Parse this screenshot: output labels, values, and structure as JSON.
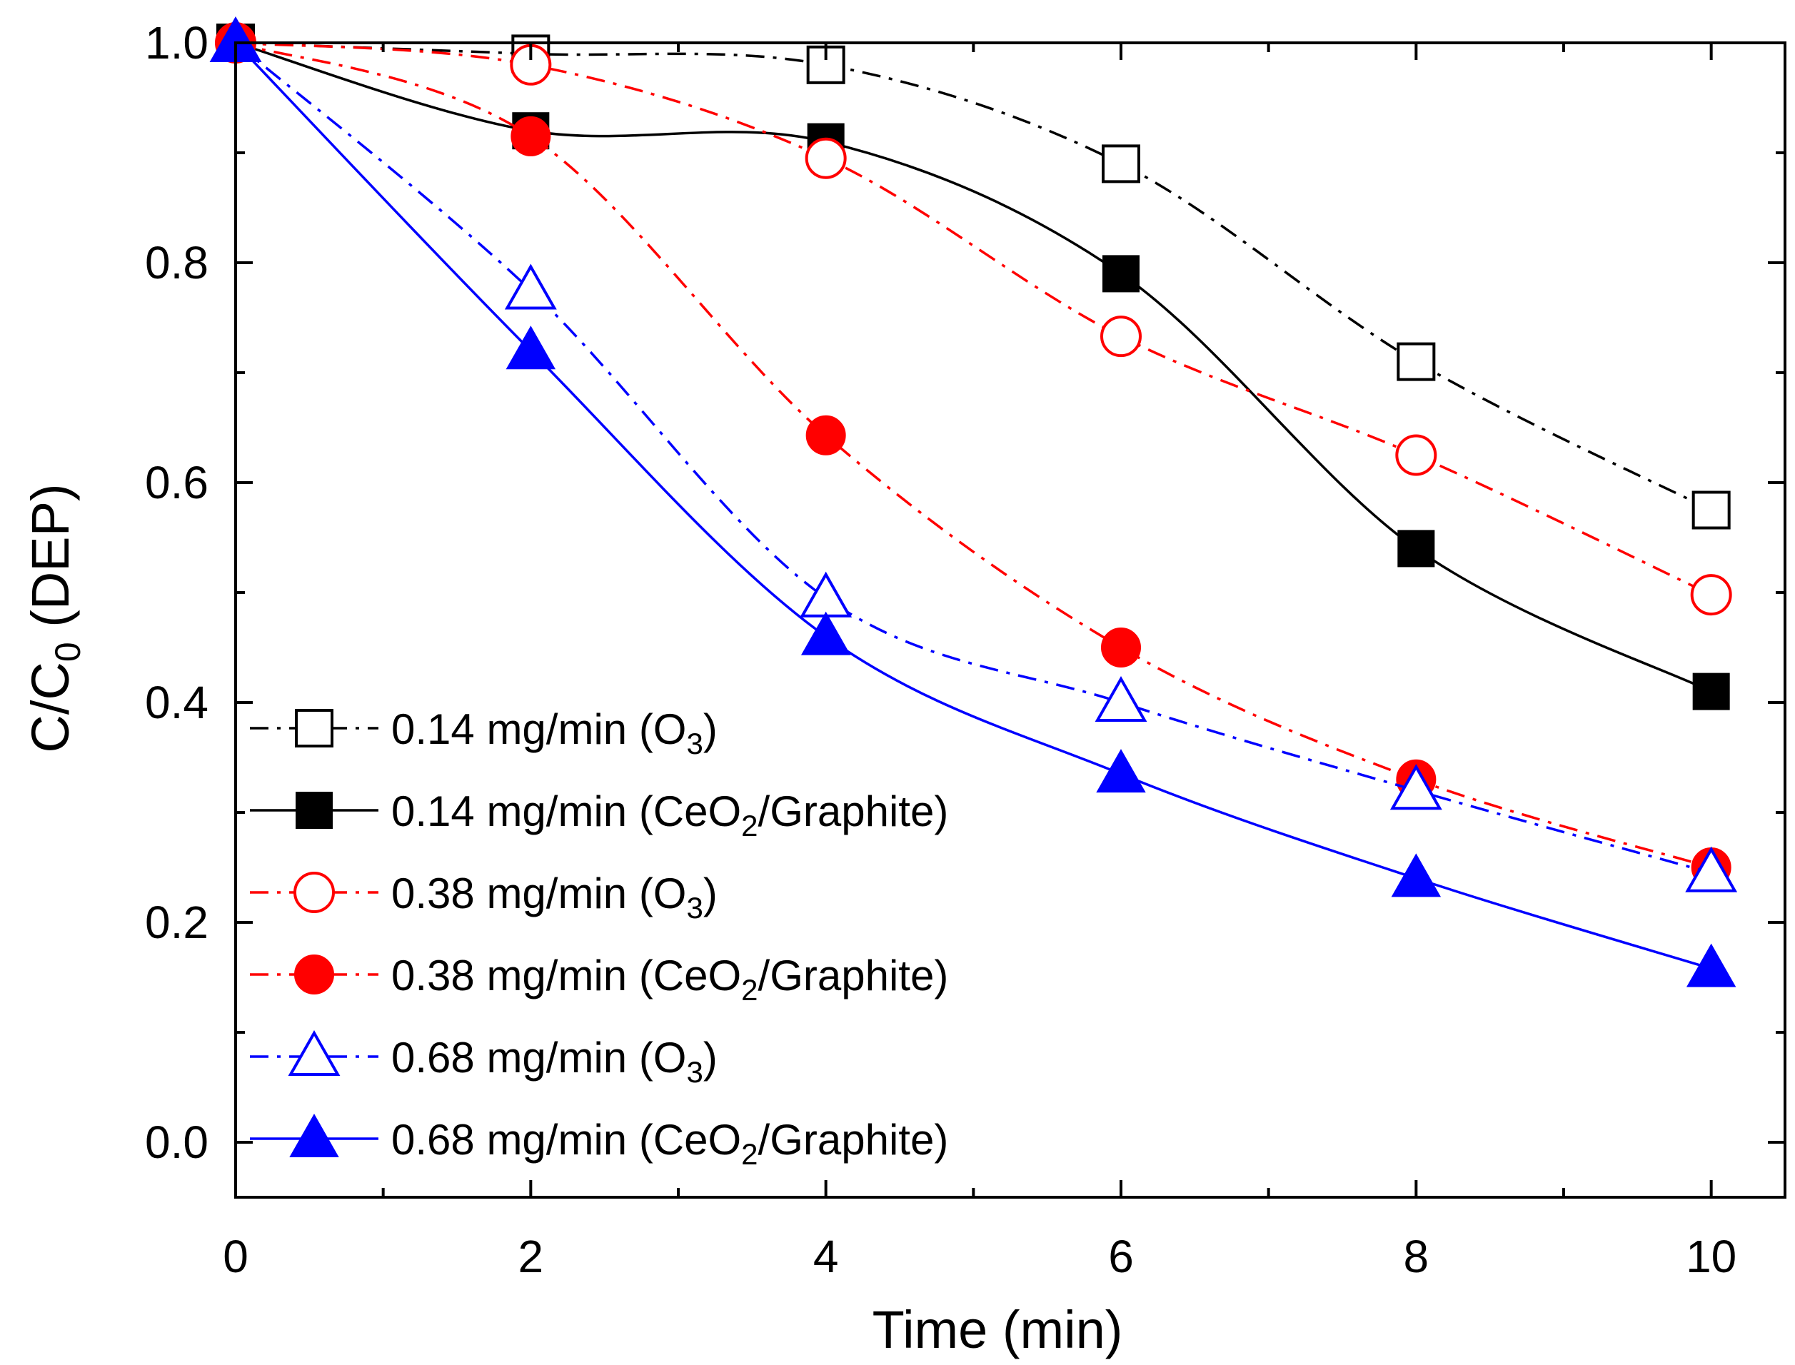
{
  "chart_data": {
    "type": "line",
    "title": "",
    "xlabel": "Time (min)",
    "ylabel_main": "C/C",
    "ylabel_sub": "0",
    "ylabel_tail": " (DEP)",
    "xlim": [
      0,
      10.5
    ],
    "ylim": [
      -0.05,
      1.0
    ],
    "x_ticks": [
      0,
      2,
      4,
      6,
      8,
      10
    ],
    "x_tick_labels": [
      "0",
      "2",
      "4",
      "6",
      "8",
      "10"
    ],
    "y_ticks": [
      0.0,
      0.2,
      0.4,
      0.6,
      0.8,
      1.0
    ],
    "y_tick_labels": [
      "0.0",
      "0.2",
      "0.4",
      "0.6",
      "0.8",
      "1.0"
    ],
    "grid": false,
    "legend_position": "bottom-left",
    "x": [
      0,
      2,
      4,
      6,
      8,
      10
    ],
    "series": [
      {
        "name_main": "0.14 mg/min (O",
        "name_sub": "3",
        "name_tail": ")",
        "color": "#000000",
        "marker": "square",
        "filled": false,
        "line_style": "dash-dot",
        "values": [
          1.0,
          0.99,
          0.98,
          0.89,
          0.71,
          0.575
        ]
      },
      {
        "name_main": "0.14 mg/min (CeO",
        "name_sub": "2",
        "name_tail": "/Graphite)",
        "color": "#000000",
        "marker": "square",
        "filled": true,
        "line_style": "solid",
        "values": [
          1.0,
          0.92,
          0.91,
          0.79,
          0.54,
          0.41
        ]
      },
      {
        "name_main": "0.38 mg/min (O",
        "name_sub": "3",
        "name_tail": ")",
        "color": "#ff0000",
        "marker": "circle",
        "filled": false,
        "line_style": "dash-dot",
        "values": [
          1.0,
          0.98,
          0.895,
          0.733,
          0.625,
          0.498
        ]
      },
      {
        "name_main": "0.38 mg/min (CeO",
        "name_sub": "2",
        "name_tail": "/Graphite)",
        "color": "#ff0000",
        "marker": "circle",
        "filled": true,
        "line_style": "dash-dot",
        "values": [
          1.0,
          0.915,
          0.643,
          0.45,
          0.33,
          0.25
        ]
      },
      {
        "name_main": "0.68 mg/min (O",
        "name_sub": "3",
        "name_tail": ")",
        "color": "#0000ff",
        "marker": "triangle",
        "filled": false,
        "line_style": "dash-dot",
        "values": [
          1.0,
          0.775,
          0.495,
          0.4,
          0.32,
          0.245
        ]
      },
      {
        "name_main": "0.68 mg/min (CeO",
        "name_sub": "2",
        "name_tail": "/Graphite)",
        "color": "#0000ff",
        "marker": "triangle",
        "filled": true,
        "line_style": "solid",
        "values": [
          1.0,
          0.72,
          0.46,
          0.335,
          0.24,
          0.158
        ]
      }
    ]
  }
}
